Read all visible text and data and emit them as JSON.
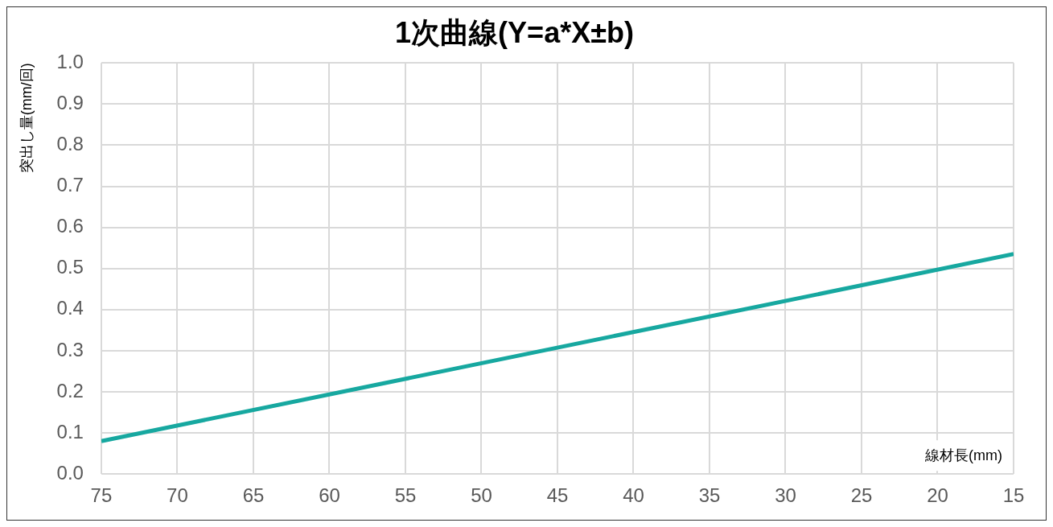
{
  "chart_data": {
    "type": "line",
    "title": "1次曲線(Y=a*X±b)",
    "xlabel": "線材長(mm)",
    "ylabel": "突出し量(mm/回)",
    "x": [
      75,
      15
    ],
    "series": [
      {
        "color": "#17a8a0",
        "values": [
          0.08,
          0.535
        ]
      }
    ],
    "xlim": [
      75,
      15
    ],
    "xticks": [
      75,
      70,
      65,
      60,
      55,
      50,
      45,
      40,
      35,
      30,
      25,
      20,
      15
    ],
    "ylim": [
      0,
      1
    ],
    "yticks": [
      {
        "value": 0,
        "label": "0.0"
      },
      {
        "value": 0.1,
        "label": "0.1"
      },
      {
        "value": 0.2,
        "label": "0.2"
      },
      {
        "value": 0.3,
        "label": "0.3"
      },
      {
        "value": 0.4,
        "label": "0.4"
      },
      {
        "value": 0.5,
        "label": "0.5"
      },
      {
        "value": 0.6,
        "label": "0.6"
      },
      {
        "value": 0.7,
        "label": "0.7"
      },
      {
        "value": 0.8,
        "label": "0.8"
      },
      {
        "value": 0.9,
        "label": "0.9"
      },
      {
        "value": 1,
        "label": "1.0"
      }
    ],
    "grid": true,
    "legend": false,
    "marker": "none",
    "line_style": "solid"
  }
}
